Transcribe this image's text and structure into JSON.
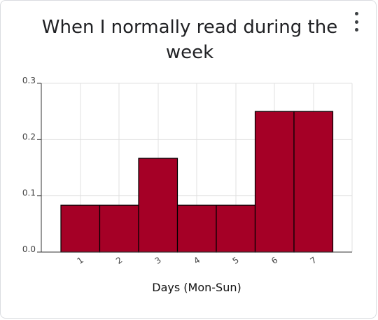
{
  "card": {
    "title": "When I normally read during the week"
  },
  "chart_data": {
    "type": "bar",
    "title": "When I normally read during the week",
    "xlabel": "Days (Mon-Sun)",
    "ylabel": "",
    "categories": [
      "1",
      "2",
      "3",
      "4",
      "5",
      "6",
      "7"
    ],
    "values": [
      0.0833,
      0.0833,
      0.1667,
      0.0833,
      0.0833,
      0.25,
      0.25
    ],
    "ylim": [
      0,
      0.3
    ],
    "yticks": [
      "0.0",
      "0.1",
      "0.2",
      "0.3"
    ],
    "grid": true,
    "bar_color": "#a50026",
    "legend": "none"
  }
}
